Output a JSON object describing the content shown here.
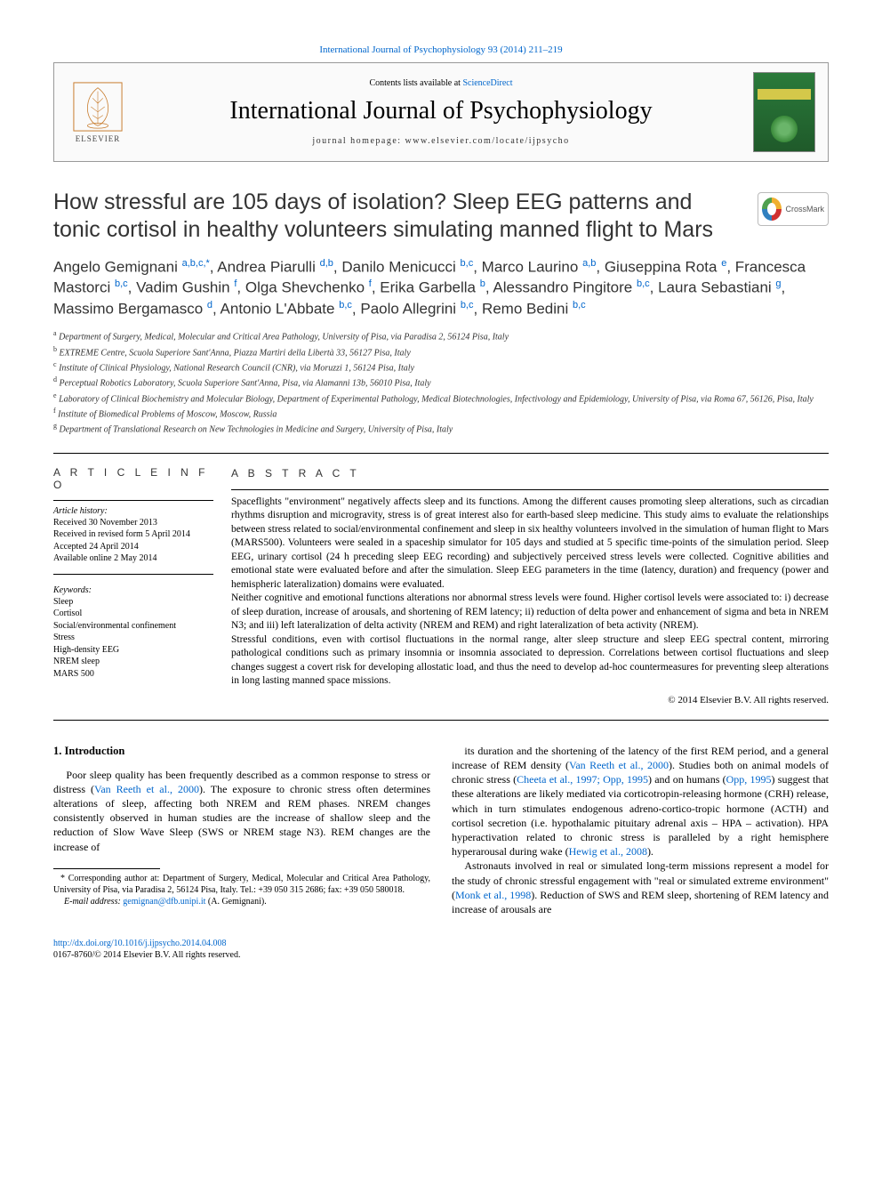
{
  "top_link": {
    "journal_line_prefix": "International Journal of Psychophysiology 93 (2014) 211–219"
  },
  "header": {
    "contents_prefix": "Contents lists available at ",
    "contents_link": "ScienceDirect",
    "journal_name": "International Journal of Psychophysiology",
    "homepage_prefix": "journal homepage: ",
    "homepage_url": "www.elsevier.com/locate/ijpsycho",
    "elsevier_label": "ELSEVIER"
  },
  "crossmark_label": "CrossMark",
  "title": "How stressful are 105 days of isolation? Sleep EEG patterns and tonic cortisol in healthy volunteers simulating manned flight to Mars",
  "authors_html": "Angelo Gemignani <span class='sup'>a,b,c,</span><span class='sup'>*</span>, Andrea Piarulli <span class='sup'>d,b</span>, Danilo Menicucci <span class='sup'>b,c</span>, Marco Laurino <span class='sup'>a,b</span>, Giuseppina Rota <span class='sup'>e</span>, Francesca Mastorci <span class='sup'>b,c</span>, Vadim Gushin <span class='sup'>f</span>, Olga Shevchenko <span class='sup'>f</span>, Erika Garbella <span class='sup'>b</span>, Alessandro Pingitore <span class='sup'>b,c</span>, Laura Sebastiani <span class='sup'>g</span>, Massimo Bergamasco <span class='sup'>d</span>, Antonio L'Abbate <span class='sup'>b,c</span>, Paolo Allegrini <span class='sup'>b,c</span>, Remo Bedini <span class='sup'>b,c</span>",
  "affiliations": [
    {
      "sup": "a",
      "text": "Department of Surgery, Medical, Molecular and Critical Area Pathology, University of Pisa, via Paradisa 2, 56124 Pisa, Italy"
    },
    {
      "sup": "b",
      "text": "EXTREME Centre, Scuola Superiore Sant'Anna, Piazza Martiri della Libertà 33, 56127 Pisa, Italy"
    },
    {
      "sup": "c",
      "text": "Institute of Clinical Physiology, National Research Council (CNR), via Moruzzi 1, 56124 Pisa, Italy"
    },
    {
      "sup": "d",
      "text": "Perceptual Robotics Laboratory, Scuola Superiore Sant'Anna, Pisa, via Alamanni 13b, 56010 Pisa, Italy"
    },
    {
      "sup": "e",
      "text": "Laboratory of Clinical Biochemistry and Molecular Biology, Department of Experimental Pathology, Medical Biotechnologies, Infectivology and Epidemiology, University of Pisa, via Roma 67, 56126, Pisa, Italy"
    },
    {
      "sup": "f",
      "text": "Institute of Biomedical Problems of Moscow, Moscow, Russia"
    },
    {
      "sup": "g",
      "text": "Department of Translational Research on New Technologies in Medicine and Surgery, University of Pisa, Italy"
    }
  ],
  "info": {
    "heading": "A R T I C L E   I N F O",
    "history_label": "Article history:",
    "history": [
      "Received 30 November 2013",
      "Received in revised form 5 April 2014",
      "Accepted 24 April 2014",
      "Available online 2 May 2014"
    ],
    "keywords_label": "Keywords:",
    "keywords": [
      "Sleep",
      "Cortisol",
      "Social/environmental confinement",
      "Stress",
      "High-density EEG",
      "NREM sleep",
      "MARS 500"
    ]
  },
  "abstract": {
    "heading": "A B S T R A C T",
    "p1": "Spaceflights \"environment\" negatively affects sleep and its functions. Among the different causes promoting sleep alterations, such as circadian rhythms disruption and microgravity, stress is of great interest also for earth-based sleep medicine. This study aims to evaluate the relationships between stress related to social/environmental confinement and sleep in six healthy volunteers involved in the simulation of human flight to Mars (MARS500). Volunteers were sealed in a spaceship simulator for 105 days and studied at 5 specific time-points of the simulation period. Sleep EEG, urinary cortisol (24 h preceding sleep EEG recording) and subjectively perceived stress levels were collected. Cognitive abilities and emotional state were evaluated before and after the simulation. Sleep EEG parameters in the time (latency, duration) and frequency (power and hemispheric lateralization) domains were evaluated.",
    "p2": "Neither cognitive and emotional functions alterations nor abnormal stress levels were found. Higher cortisol levels were associated to: i) decrease of sleep duration, increase of arousals, and shortening of REM latency; ii) reduction of delta power and enhancement of sigma and beta in NREM N3; and iii) left lateralization of delta activity (NREM and REM) and right lateralization of beta activity (NREM).",
    "p3": "Stressful conditions, even with cortisol fluctuations in the normal range, alter sleep structure and sleep EEG spectral content, mirroring pathological conditions such as primary insomnia or insomnia associated to depression. Correlations between cortisol fluctuations and sleep changes suggest a covert risk for developing allostatic load, and thus the need to develop ad-hoc countermeasures for preventing sleep alterations in long lasting manned space missions.",
    "copyright": "© 2014 Elsevier B.V. All rights reserved."
  },
  "intro": {
    "heading": "1. Introduction",
    "p1_a": "Poor sleep quality has been frequently described as a common response to stress or distress (",
    "p1_link1": "Van Reeth et al., 2000",
    "p1_b": "). The exposure to chronic stress often determines alterations of sleep, affecting both NREM and REM phases. NREM changes consistently observed in human studies are the increase of shallow sleep and the reduction of Slow Wave Sleep (SWS or NREM stage N3). REM changes are the increase of",
    "p2_a": "its duration and the shortening of the latency of the first REM period, and a general increase of REM density (",
    "p2_link1": "Van Reeth et al., 2000",
    "p2_b": "). Studies both on animal models of chronic stress (",
    "p2_link2": "Cheeta et al., 1997; Opp, 1995",
    "p2_c": ") and on humans (",
    "p2_link3": "Opp, 1995",
    "p2_d": ") suggest that these alterations are likely mediated via corticotropin-releasing hormone (CRH) release, which in turn stimulates endogenous adreno-cortico-tropic hormone (ACTH) and cortisol secretion (i.e. hypothalamic pituitary adrenal axis – HPA – activation). HPA hyperactivation related to chronic stress is paralleled by a right hemisphere hyperarousal during wake (",
    "p2_link4": "Hewig et al., 2008",
    "p2_e": ").",
    "p3_a": "Astronauts involved in real or simulated long-term missions represent a model for the study of chronic stressful engagement with \"real or simulated extreme environment\" (",
    "p3_link1": "Monk et al., 1998",
    "p3_b": "). Reduction of SWS and REM sleep, shortening of REM latency and increase of arousals are"
  },
  "footnotes": {
    "corr_prefix": "* Corresponding author at: Department of Surgery, Medical, Molecular and Critical Area Pathology, University of Pisa, via Paradisa 2, 56124 Pisa, Italy. Tel.: +39 050 315 2686; fax: +39 050 580018.",
    "email_label": "E-mail address: ",
    "email": "gemignan@dfb.unipi.it",
    "email_suffix": " (A. Gemignani)."
  },
  "footer": {
    "doi": "http://dx.doi.org/10.1016/j.ijpsycho.2014.04.008",
    "issn_line": "0167-8760/© 2014 Elsevier B.V. All rights reserved."
  },
  "colors": {
    "link": "#0066cc",
    "text": "#000000",
    "rule": "#000000"
  }
}
